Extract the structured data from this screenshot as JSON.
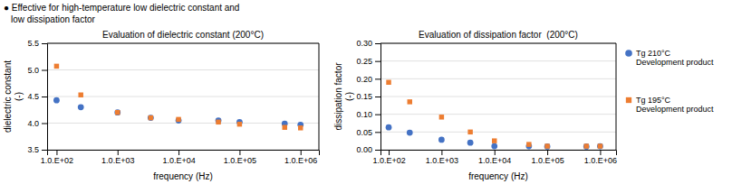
{
  "title": "● Effective for high-temperature low dielectric constant and",
  "subtitle": "low dissipation factor",
  "chart_data": [
    {
      "type": "scatter",
      "title": "Evaluation of dielectric constant (200°C)",
      "xlabel": "frequency (Hz)",
      "ylabel": "dielectric constant\n(-)",
      "log": "x",
      "grid": true,
      "x": [
        100,
        250,
        1000,
        3500,
        10000,
        45000,
        100000,
        550000,
        1000000
      ],
      "series": [
        {
          "name": "Tg 210°C\nDevelopment product",
          "color": "#4472C4",
          "marker": "circle",
          "values": [
            4.43,
            4.3,
            4.2,
            4.1,
            4.05,
            4.05,
            4.02,
            3.99,
            3.97
          ]
        },
        {
          "name": "Tg 195°C\nDevelopment product",
          "color": "#ED7D31",
          "marker": "square",
          "values": [
            5.07,
            4.53,
            4.2,
            4.1,
            4.07,
            4.02,
            3.98,
            3.92,
            3.91
          ]
        }
      ],
      "xlim": [
        70,
        2000000
      ],
      "xticks": [
        {
          "value": 100,
          "label": "1.0.E+02"
        },
        {
          "value": 1000,
          "label": "1.0.E+03"
        },
        {
          "value": 10000,
          "label": "1.0.E+04"
        },
        {
          "value": 100000,
          "label": "1.0.E+05"
        },
        {
          "value": 1000000,
          "label": "1.0.E+06"
        }
      ],
      "ylim": [
        3.5,
        5.5
      ],
      "yticks": [
        3.5,
        {
          "value": 4.0,
          "label": "4.0"
        },
        4.5,
        {
          "value": 5.0,
          "label": "5.0"
        },
        5.5
      ]
    },
    {
      "type": "scatter",
      "title": "Evaluation of dissipation factor  (200°C)",
      "xlabel": "frequency (Hz)",
      "ylabel": "dissipation factor\n(-)",
      "log": "x",
      "grid": true,
      "legend": "right",
      "x": [
        100,
        250,
        1000,
        3500,
        10000,
        45000,
        100000,
        550000,
        1000000
      ],
      "series": [
        {
          "name": "Tg 210°C\nDevelopment product",
          "color": "#4472C4",
          "marker": "circle",
          "values": [
            0.063,
            0.048,
            0.028,
            0.02,
            0.01,
            0.01,
            0.009,
            0.009,
            0.01
          ]
        },
        {
          "name": "Tg 195°C\nDevelopment product",
          "color": "#ED7D31",
          "marker": "square",
          "values": [
            0.19,
            0.135,
            0.092,
            0.05,
            0.025,
            0.015,
            0.01,
            0.01,
            0.01
          ]
        }
      ],
      "xlim": [
        70,
        2000000
      ],
      "xticks": [
        {
          "value": 100,
          "label": "1.0.E+02"
        },
        {
          "value": 1000,
          "label": "1.0.E+03"
        },
        {
          "value": 10000,
          "label": "1.0.E+04"
        },
        {
          "value": 100000,
          "label": "1.0.E+05"
        },
        {
          "value": 1000000,
          "label": "1.0.E+06"
        }
      ],
      "ylim": [
        0.0,
        0.3
      ],
      "yticks": [
        {
          "value": 0.0,
          "label": "0.00"
        },
        {
          "value": 0.05,
          "label": "0.05"
        },
        {
          "value": 0.1,
          "label": "0.10"
        },
        {
          "value": 0.15,
          "label": "0.15"
        },
        {
          "value": 0.2,
          "label": "0.20"
        },
        {
          "value": 0.25,
          "label": "0.25"
        },
        {
          "value": 0.3,
          "label": "0.30"
        }
      ]
    }
  ]
}
